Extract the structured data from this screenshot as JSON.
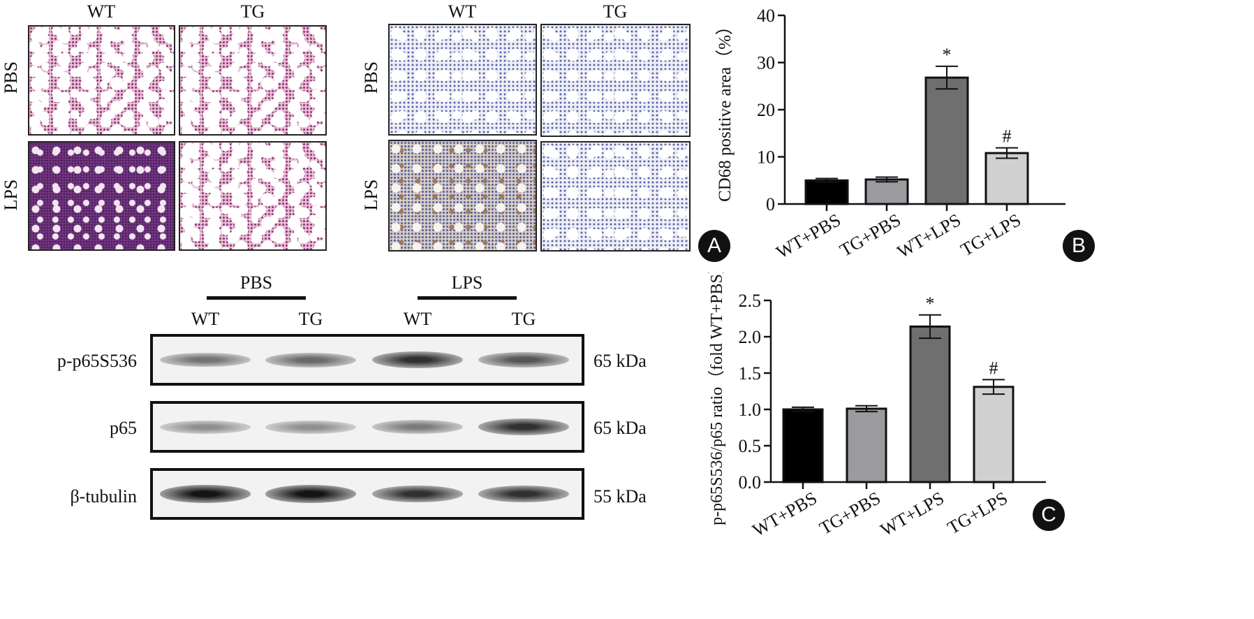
{
  "panel_a": {
    "he_columns": [
      "WT",
      "TG"
    ],
    "ihc_columns": [
      "WT",
      "TG"
    ],
    "rows": [
      "PBS",
      "LPS"
    ],
    "badge": "A"
  },
  "panel_b": {
    "badge": "B"
  },
  "panel_c": {
    "badge": "C"
  },
  "western": {
    "groups": [
      "PBS",
      "LPS"
    ],
    "lanes": [
      "WT",
      "TG",
      "WT",
      "TG"
    ],
    "blots": [
      {
        "label": "p-p65S536",
        "kda": "65 kDa",
        "intensity": [
          0.45,
          0.5,
          0.8,
          0.6
        ]
      },
      {
        "label": "p65",
        "kda": "65 kDa",
        "intensity": [
          0.3,
          0.3,
          0.4,
          0.8
        ]
      },
      {
        "label": "β-tubulin",
        "kda": "55 kDa",
        "intensity": [
          0.95,
          0.95,
          0.8,
          0.8
        ]
      }
    ]
  },
  "chart_data": [
    {
      "type": "bar",
      "panel": "B",
      "categories": [
        "WT+PBS",
        "TG+PBS",
        "WT+LPS",
        "TG+LPS"
      ],
      "values": [
        5.0,
        5.2,
        26.8,
        10.8
      ],
      "errors": [
        0.4,
        0.5,
        2.4,
        1.1
      ],
      "annotations": [
        "",
        "",
        "*",
        "#"
      ],
      "colors": [
        "#000000",
        "#9b9b9f",
        "#6f6f6f",
        "#d0d0d0"
      ],
      "ylabel": "CD68 positive area（%）",
      "ylim": [
        0,
        40
      ],
      "yticks": [
        0,
        10,
        20,
        30,
        40
      ]
    },
    {
      "type": "bar",
      "panel": "C",
      "categories": [
        "WT+PBS",
        "TG+PBS",
        "WT+LPS",
        "TG+LPS"
      ],
      "values": [
        1.0,
        1.01,
        2.14,
        1.31
      ],
      "errors": [
        0.03,
        0.04,
        0.16,
        0.1
      ],
      "annotations": [
        "",
        "",
        "*",
        "#"
      ],
      "colors": [
        "#000000",
        "#9b9b9f",
        "#6f6f6f",
        "#d0d0d0"
      ],
      "ylabel": "p-p65S536/p65 ratio（fold WT+PBS）",
      "ylim": [
        0,
        2.5
      ],
      "yticks": [
        "0.0",
        "0.5",
        "1.0",
        "1.5",
        "2.0",
        "2.5"
      ]
    }
  ]
}
